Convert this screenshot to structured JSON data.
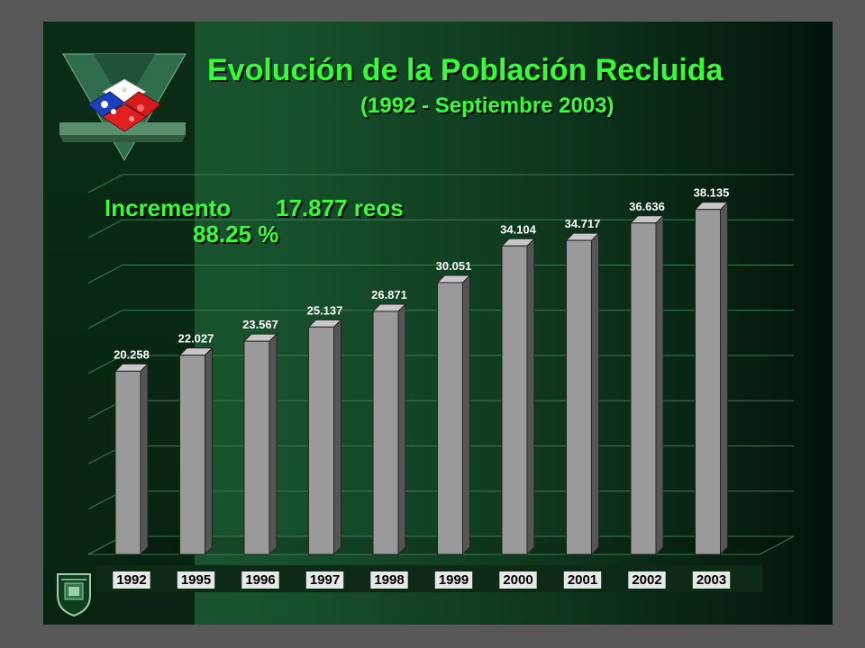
{
  "slide": {
    "title": "Evolución de la Población Recluida",
    "subtitle": "(1992 -  Septiembre 2003)",
    "increment_label": "Incremento",
    "increment_value": "17.877 reos",
    "increment_percent": "88.25 %"
  },
  "colors": {
    "title_text": "#33ff33",
    "bar_front": "#9a9a9a",
    "background_green": "#1c5a32"
  },
  "logos": [
    "chile-flag-cube-logo",
    "gendarmeria-shield-logo"
  ],
  "chart_data": {
    "type": "bar",
    "categories": [
      "1992",
      "1995",
      "1996",
      "1997",
      "1998",
      "1999",
      "2000",
      "2001",
      "2002",
      "2003"
    ],
    "values": [
      20258,
      22027,
      23567,
      25137,
      26871,
      30051,
      34104,
      34717,
      36636,
      38135
    ],
    "value_labels": [
      "20.258",
      "22.027",
      "23.567",
      "25.137",
      "26.871",
      "30.051",
      "34.104",
      "34.717",
      "36.636",
      "38.135"
    ],
    "ylim": [
      0,
      40000
    ],
    "grid": true,
    "three_d": true
  }
}
